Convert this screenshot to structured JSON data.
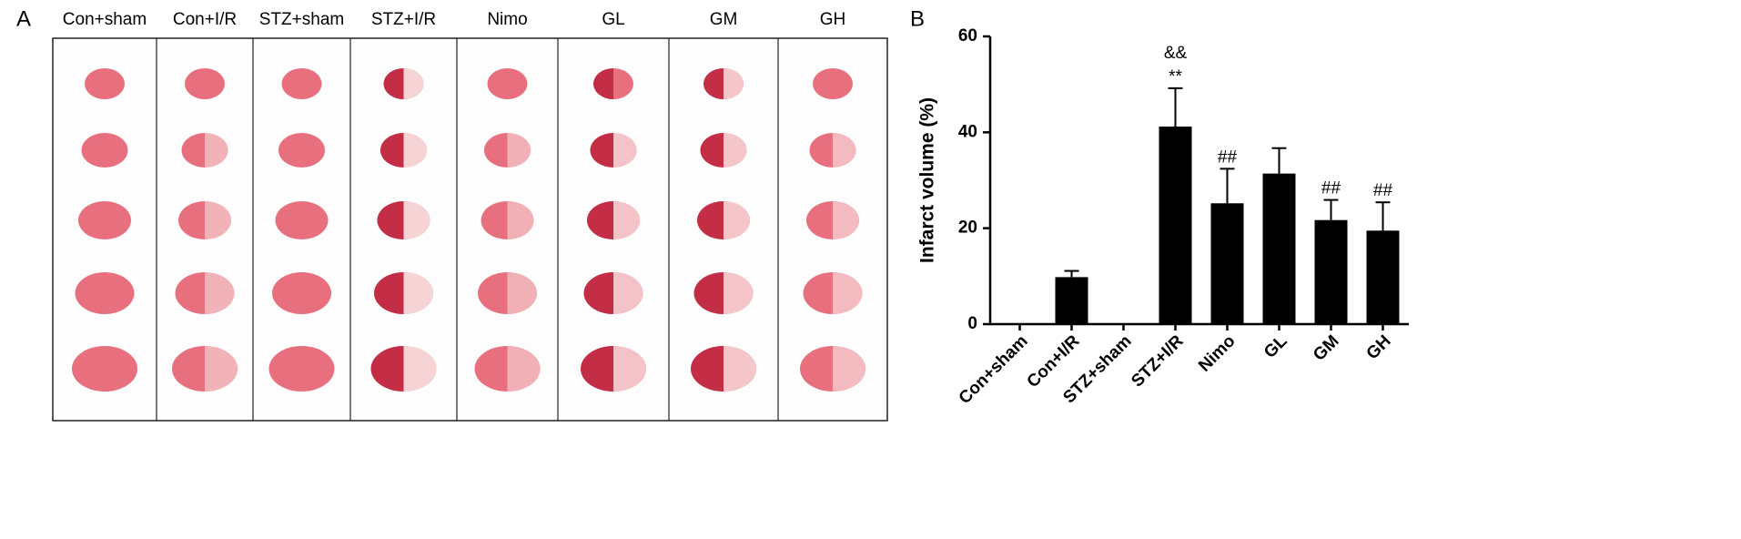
{
  "figure": {
    "panel_a_label": "A",
    "panel_b_label": "B",
    "panel_a_columns": [
      "Con+sham",
      "Con+I/R",
      "STZ+sham",
      "STZ+I/R",
      "Nimo",
      "GL",
      "GM",
      "GH"
    ]
  },
  "chart_data": {
    "type": "bar",
    "y_label": "Infarct volume (%)",
    "categories": [
      "Con+sham",
      "Con+I/R",
      "STZ+sham",
      "STZ+I/R",
      "Nimo",
      "GL",
      "GM",
      "GH"
    ],
    "values": [
      0,
      9.8,
      0,
      41.2,
      25.2,
      31.4,
      21.7,
      19.5
    ],
    "errors": [
      null,
      1.3,
      null,
      8.0,
      7.2,
      5.3,
      4.2,
      5.9
    ],
    "annotations": [
      null,
      null,
      null,
      [
        "**",
        "&&"
      ],
      [
        "##"
      ],
      null,
      [
        "##"
      ],
      [
        "##"
      ]
    ],
    "color": "#000000",
    "ylim": [
      0,
      60
    ],
    "yticks": [
      0,
      20,
      40,
      60
    ]
  }
}
